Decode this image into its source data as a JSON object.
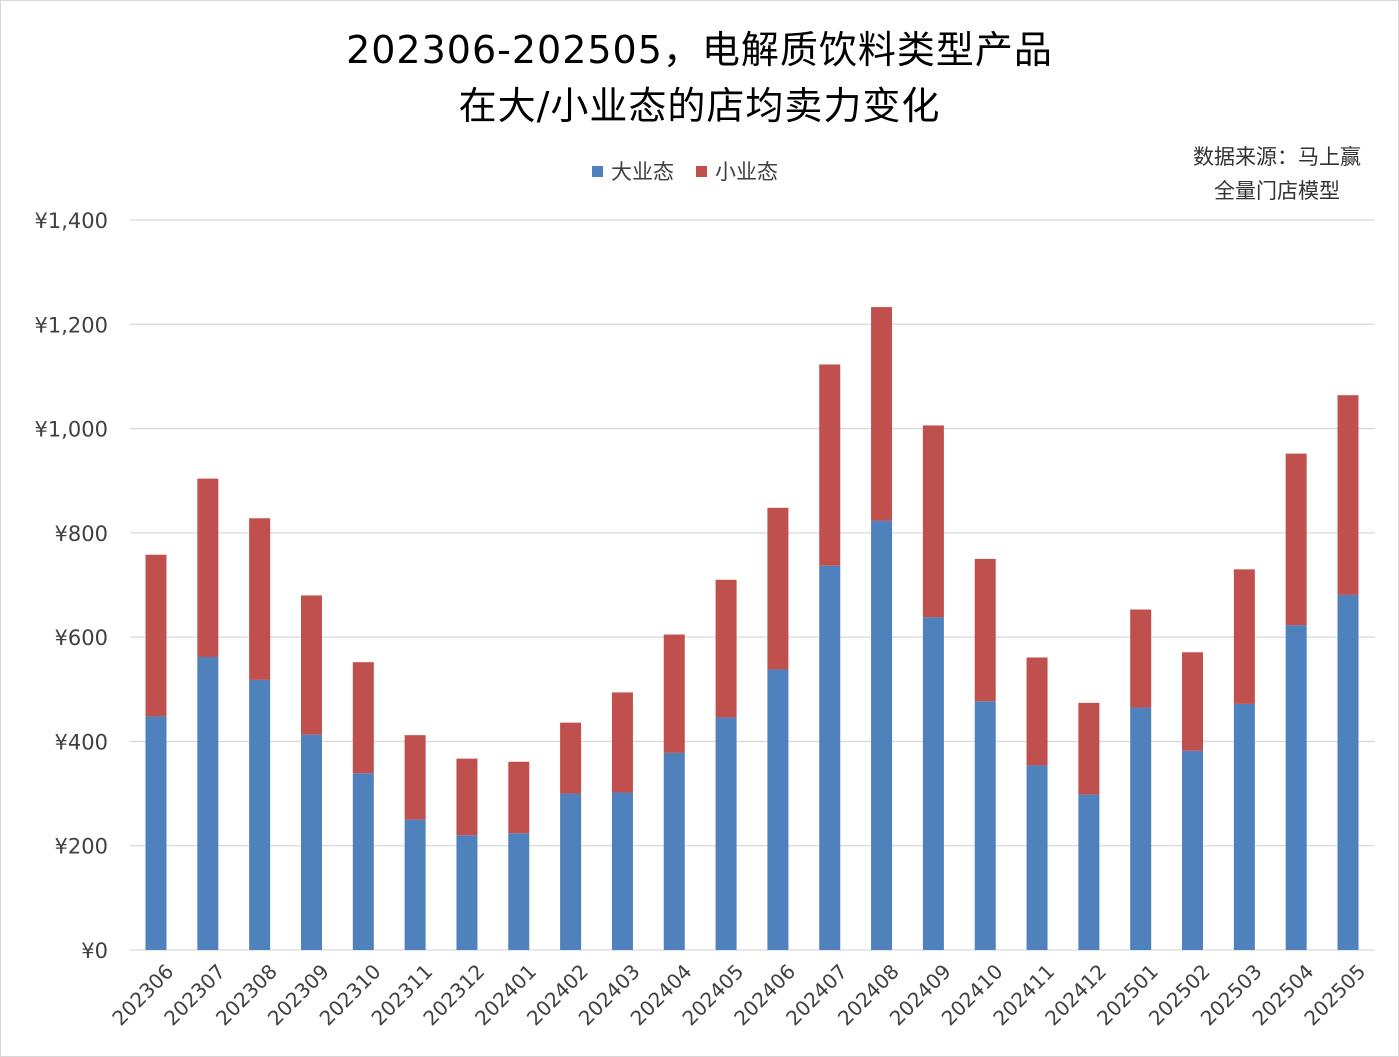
{
  "title_lines": [
    "202306-202505，电解质饮料类型产品",
    "在大/小业态的店均卖力变化"
  ],
  "source_lines": [
    "数据来源：马上赢",
    "全量门店模型"
  ],
  "colors": {
    "large": "#4f81bd",
    "small": "#c0504d",
    "grid": "#d9d9d9",
    "axis_text": "#404040"
  },
  "chart_data": {
    "type": "bar",
    "stacked": true,
    "title": "202306-202505，电解质饮料类型产品在大/小业态的店均卖力变化",
    "categories": [
      "202306",
      "202307",
      "202308",
      "202309",
      "202310",
      "202311",
      "202312",
      "202401",
      "202402",
      "202403",
      "202404",
      "202405",
      "202406",
      "202407",
      "202408",
      "202409",
      "202410",
      "202411",
      "202412",
      "202501",
      "202502",
      "202503",
      "202504",
      "202505"
    ],
    "series": [
      {
        "name": "大业态",
        "values": [
          448,
          562,
          518,
          413,
          339,
          250,
          220,
          224,
          300,
          302,
          378,
          446,
          538,
          737,
          823,
          638,
          477,
          354,
          298,
          465,
          382,
          472,
          623,
          681
        ]
      },
      {
        "name": "小业态",
        "values": [
          310,
          342,
          310,
          267,
          213,
          162,
          147,
          137,
          136,
          192,
          227,
          264,
          310,
          386,
          410,
          368,
          273,
          207,
          176,
          188,
          189,
          258,
          329,
          383
        ]
      }
    ],
    "ylim": [
      0,
      1400
    ],
    "yticks": [
      0,
      200,
      400,
      600,
      800,
      1000,
      1200,
      1400
    ],
    "ytick_labels": [
      "¥0",
      "¥200",
      "¥400",
      "¥600",
      "¥800",
      "¥1,000",
      "¥1,200",
      "¥1,400"
    ],
    "grid": true,
    "legend_position": "top-center"
  }
}
